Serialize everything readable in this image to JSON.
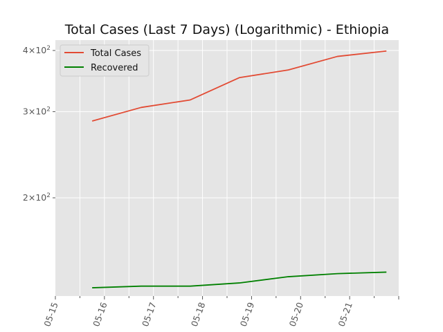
{
  "chart_data": {
    "type": "line",
    "title": "Total Cases (Last 7 Days) (Logarithmic) - Ethiopia",
    "xlabel": "",
    "ylabel": "",
    "yscale": "log",
    "grid": true,
    "legend_position": "top-left",
    "x_tick_labels": [
      "05-15",
      "05-16",
      "05-17",
      "05-18",
      "05-19",
      "05-20",
      "05-21"
    ],
    "x_range": [
      "2020-05-15",
      "2020-05-22"
    ],
    "x": [
      "2020-05-15 18:00",
      "2020-05-16 18:00",
      "2020-05-17 18:00",
      "2020-05-18 18:00",
      "2020-05-19 18:00",
      "2020-05-20 18:00",
      "2020-05-21 18:00"
    ],
    "ylim": [
      126,
      420
    ],
    "y_ticks": [
      {
        "value": 200,
        "mantissa": "2",
        "base": "10",
        "exponent": "2"
      },
      {
        "value": 300,
        "mantissa": "3",
        "base": "10",
        "exponent": "2"
      },
      {
        "value": 400,
        "mantissa": "4",
        "base": "10",
        "exponent": "2"
      }
    ],
    "series": [
      {
        "name": "Total Cases",
        "color": "#e24a33",
        "values": [
          287,
          306,
          317,
          352,
          365,
          389,
          399
        ]
      },
      {
        "name": "Recovered",
        "color": "#008000",
        "values": [
          131,
          132,
          132,
          134,
          138,
          140,
          141
        ]
      }
    ]
  }
}
